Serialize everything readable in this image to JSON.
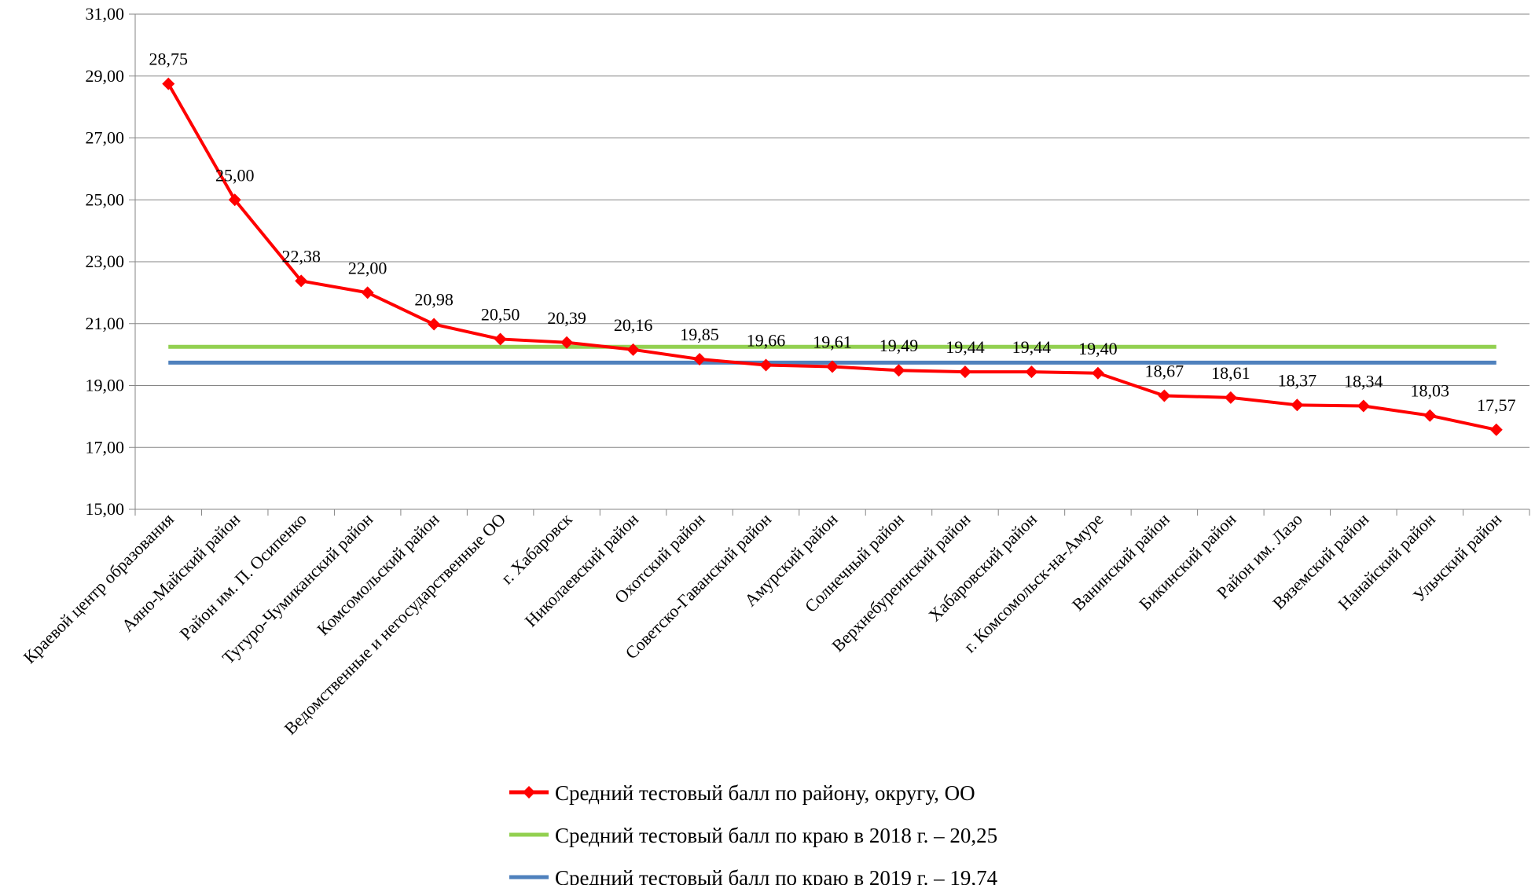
{
  "chart_data": {
    "type": "line",
    "categories": [
      "Краевой центр образования",
      "Аяно-Майский район",
      "Район им. П. Осипенко",
      "Тугуро-Чумиканский район",
      "Комсомольский район",
      "Ведомственные и негосударственные ОО",
      "г. Хабаровск",
      "Николаевский район",
      "Охотский район",
      "Советско-Гаванский район",
      "Амурский район",
      "Солнечный район",
      "Верхнебуреинский район",
      "Хабаровский район",
      "г. Комсомольск-на-Амуре",
      "Ванинский район",
      "Бикинский район",
      "Район им. Лазо",
      "Вяземский район",
      "Нанайский район",
      "Ульчский район"
    ],
    "series": [
      {
        "name": "Средний тестовый балл по району, округу, ОО",
        "kind": "line-with-markers",
        "color": "#ff0000",
        "values": [
          28.75,
          25.0,
          22.38,
          22.0,
          20.98,
          20.5,
          20.39,
          20.16,
          19.85,
          19.66,
          19.61,
          19.49,
          19.44,
          19.44,
          19.4,
          18.67,
          18.61,
          18.37,
          18.34,
          18.03,
          17.57
        ],
        "labels": [
          "28,75",
          "25,00",
          "22,38",
          "22,00",
          "20,98",
          "20,50",
          "20,39",
          "20,16",
          "19,85",
          "19,66",
          "19,61",
          "19,49",
          "19,44",
          "19,44",
          "19,40",
          "18,67",
          "18,61",
          "18,37",
          "18,34",
          "18,03",
          "17,57"
        ]
      },
      {
        "name": "Средний тестовый балл по краю в 2018 г. – 20,25",
        "kind": "constant",
        "color": "#92d050",
        "value": 20.25
      },
      {
        "name": "Средний тестовый балл по краю в 2019 г. – 19,74",
        "kind": "constant",
        "color": "#4f81bd",
        "value": 19.74
      }
    ],
    "y_ticks": [
      "15,00",
      "17,00",
      "19,00",
      "21,00",
      "23,00",
      "25,00",
      "27,00",
      "29,00",
      "31,00"
    ],
    "ylim": [
      15,
      31
    ],
    "ystep": 2,
    "grid": true,
    "legend_position": "bottom",
    "title": "",
    "xlabel": "",
    "ylabel": ""
  }
}
